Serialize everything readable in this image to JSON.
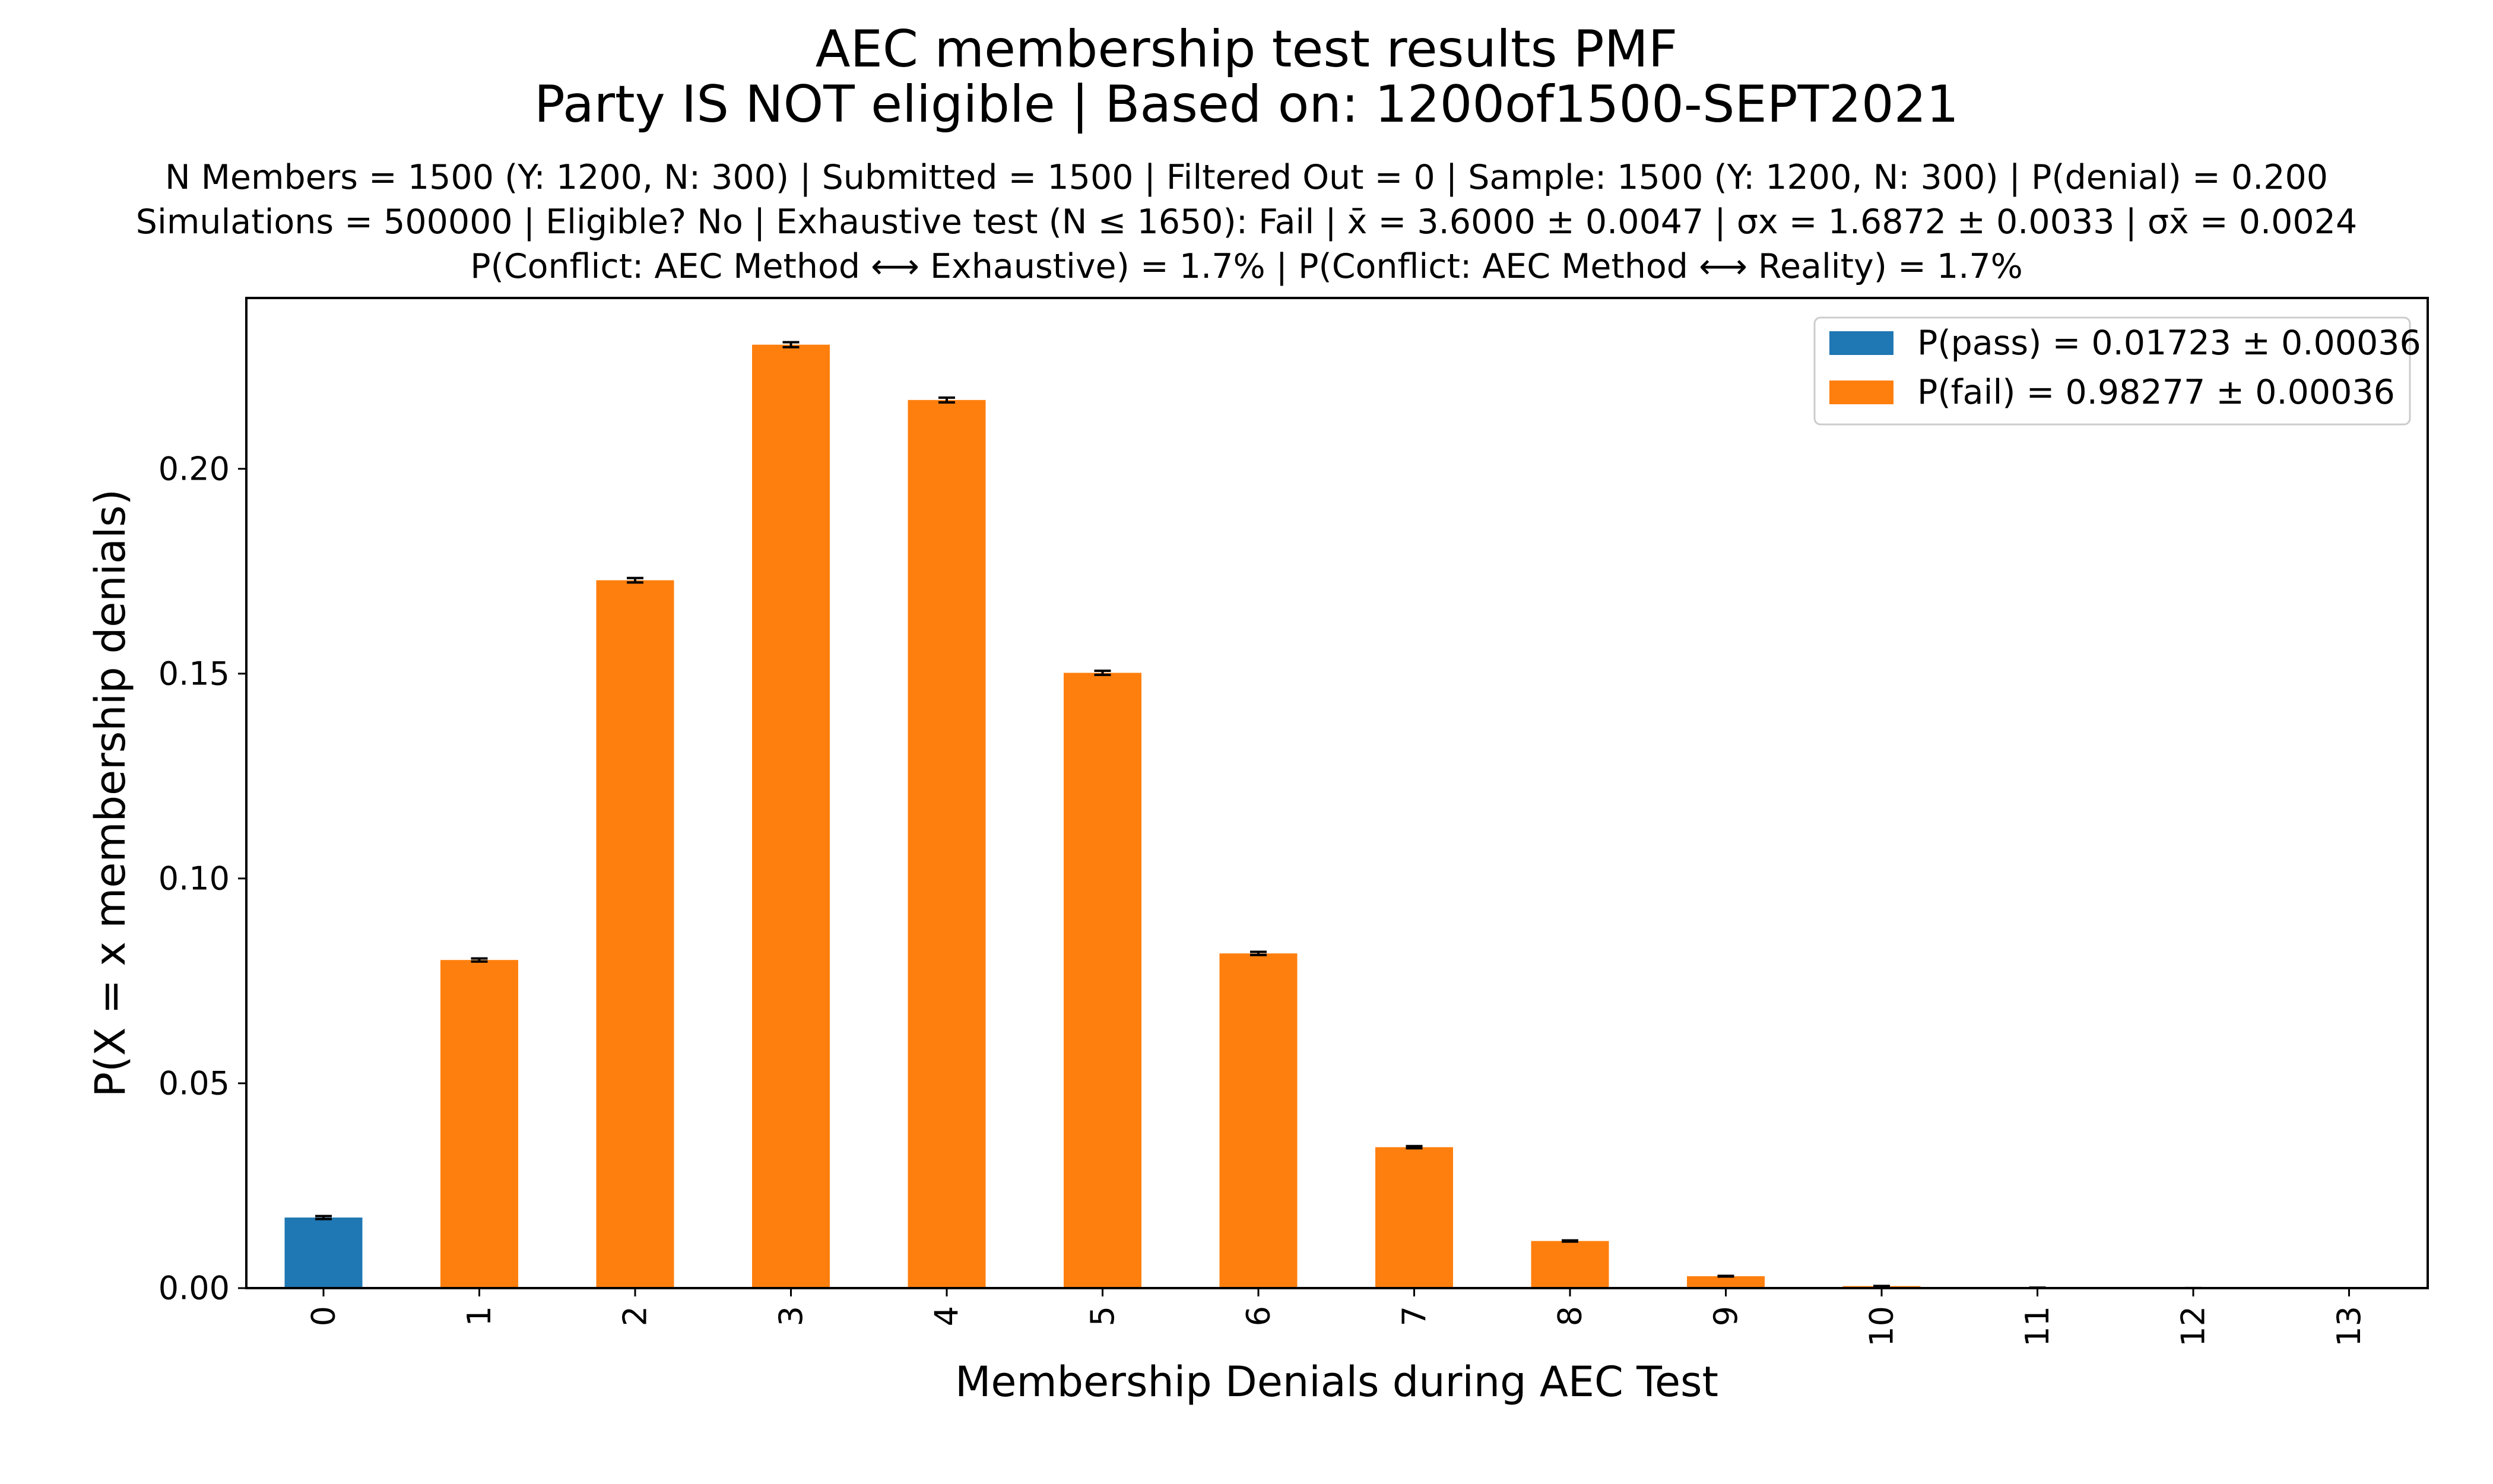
{
  "chart_data": {
    "type": "bar",
    "title": "AEC membership test results PMF",
    "subtitle": "Party IS NOT eligible | Based on: 1200of1500-SEPT2021",
    "info_lines": [
      "N Members = 1500 (Y: 1200, N: 300) | Submitted = 1500 | Filtered Out = 0 | Sample: 1500 (Y: 1200, N: 300) | P(denial) = 0.200",
      "Simulations = 500000 | Eligible? No | Exhaustive test (N ≤ 1650): Fail | x̄ = 3.6000 ± 0.0047 | σx = 1.6872 ± 0.0033 | σx̄ = 0.0024",
      "P(Conflict: AEC Method ⟷ Exhaustive) = 1.7% | P(Conflict: AEC Method ⟷ Reality) = 1.7%"
    ],
    "xlabel": "Membership Denials during AEC Test",
    "ylabel": "P(X = x membership denials)",
    "categories": [
      "0",
      "1",
      "2",
      "3",
      "4",
      "5",
      "6",
      "7",
      "8",
      "9",
      "10",
      "11",
      "12",
      "13"
    ],
    "values": [
      0.01723,
      0.0801,
      0.1728,
      0.2303,
      0.2168,
      0.1502,
      0.0817,
      0.0344,
      0.0115,
      0.0029,
      0.0005,
      0.0001,
      1e-05,
      1e-06
    ],
    "errors": [
      0.00036,
      0.00038,
      0.00054,
      0.0006,
      0.00058,
      0.0005,
      0.00039,
      0.00026,
      0.00015,
      8e-05,
      3e-05,
      1e-05,
      5e-06,
      1e-06
    ],
    "bar_groups": [
      "pass",
      "fail",
      "fail",
      "fail",
      "fail",
      "fail",
      "fail",
      "fail",
      "fail",
      "fail",
      "fail",
      "fail",
      "fail",
      "fail"
    ],
    "yticks": [
      "0.00",
      "0.05",
      "0.10",
      "0.15",
      "0.20"
    ],
    "ylim": [
      0,
      0.2417
    ],
    "legend": [
      {
        "key": "pass",
        "label": "P(pass) = 0.01723 ± 0.00036",
        "color": "#1f77b4"
      },
      {
        "key": "fail",
        "label": "P(fail) = 0.98277 ± 0.00036",
        "color": "#ff7f0e"
      }
    ],
    "legend_position": "top-right",
    "grid": false
  }
}
